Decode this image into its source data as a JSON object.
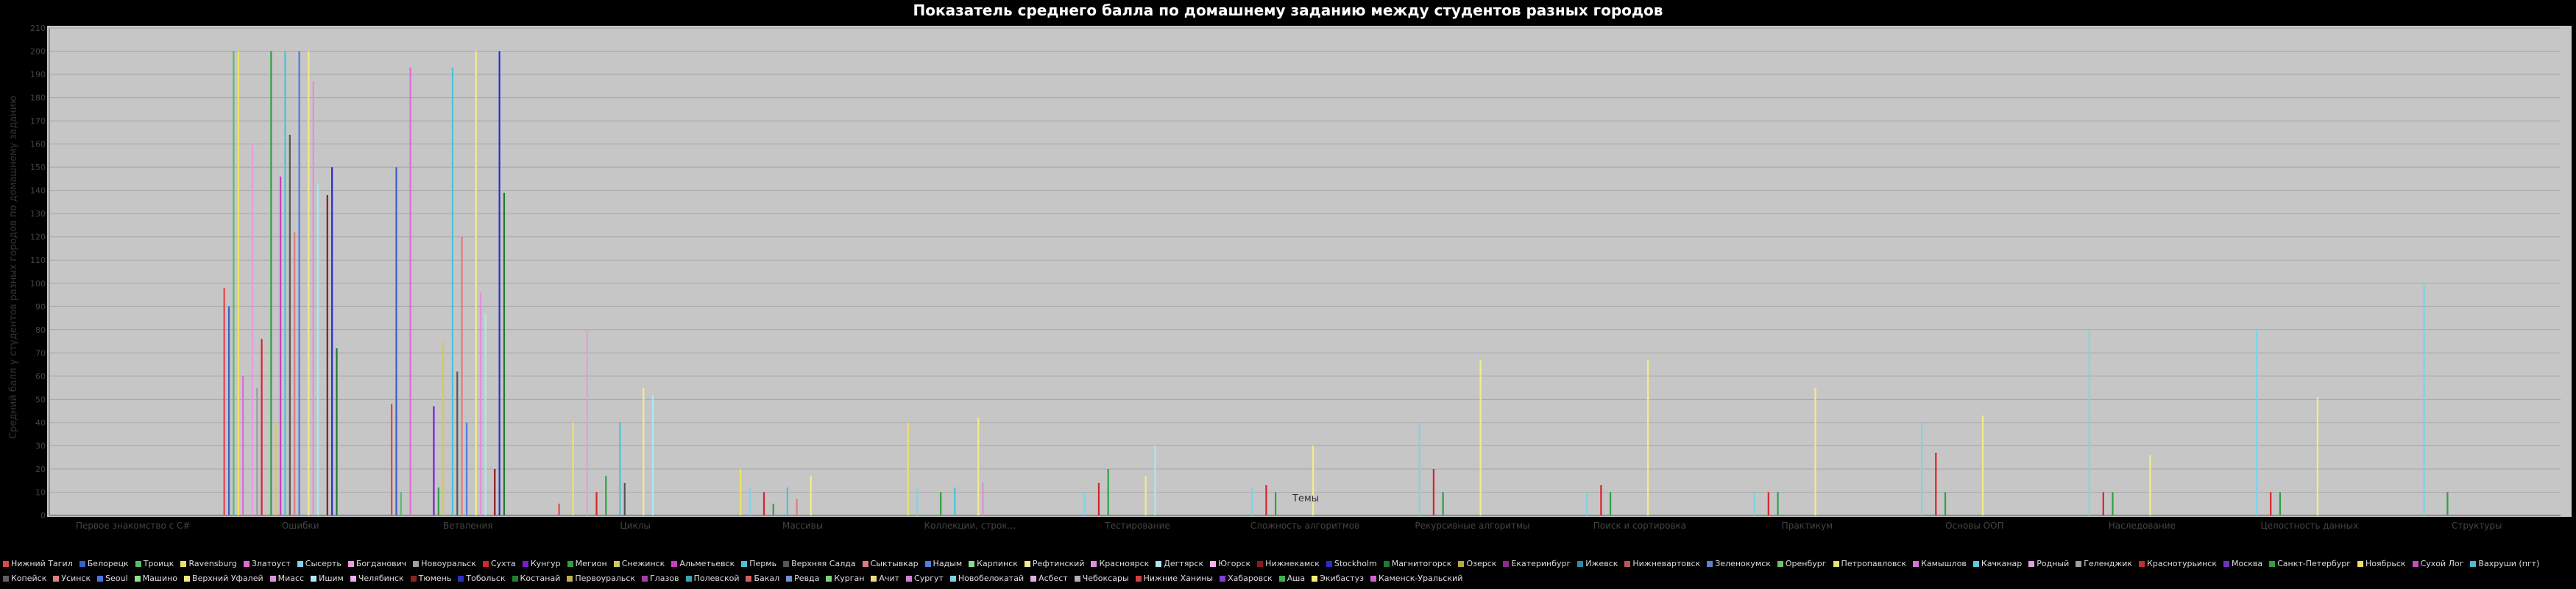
{
  "chart_data": {
    "type": "bar",
    "title": "Показатель среднего балла по домашнему заданию между студентов разных городов",
    "xlabel": "Темы",
    "ylabel": "Средний балл у студентов разных городов по домашнему заданию",
    "ylim": [
      0,
      210
    ],
    "yticks": [
      0,
      10,
      20,
      30,
      40,
      50,
      60,
      70,
      80,
      90,
      100,
      110,
      120,
      130,
      140,
      150,
      160,
      170,
      180,
      190,
      200,
      210
    ],
    "grid": true,
    "legend_position": "bottom",
    "categories": [
      "Первое знакомство с C#",
      "Ошибки",
      "Ветвления",
      "Циклы",
      "Массивы",
      "Коллекции, строк…",
      "Тестирование",
      "Сложность алгоритмов",
      "Рекурсивные алгоритмы",
      "Поиск и сортировка",
      "Практикум",
      "Основы ООП",
      "Наследование",
      "Целостность данных",
      "Структуры"
    ],
    "series": [
      {
        "name": "Нижний Тагил",
        "color": "#e0454a",
        "values": [
          0,
          98,
          48,
          5,
          0,
          0,
          0,
          0,
          0,
          0,
          0,
          0,
          0,
          0,
          0
        ]
      },
      {
        "name": "Белорецк",
        "color": "#3a5fcd",
        "values": [
          0,
          90,
          150,
          0,
          0,
          0,
          0,
          0,
          0,
          0,
          0,
          0,
          0,
          0,
          0
        ]
      },
      {
        "name": "Троицк",
        "color": "#4fc16a",
        "values": [
          0,
          200,
          10,
          0,
          0,
          0,
          0,
          0,
          0,
          0,
          0,
          0,
          0,
          0,
          0
        ]
      },
      {
        "name": "Ravensburg",
        "color": "#f0e35a",
        "values": [
          0,
          200,
          0,
          40,
          20,
          40,
          0,
          0,
          0,
          0,
          0,
          0,
          0,
          0,
          0
        ]
      },
      {
        "name": "Златоуст",
        "color": "#e069d6",
        "values": [
          0,
          60,
          193,
          0,
          0,
          0,
          0,
          0,
          0,
          0,
          0,
          0,
          0,
          0,
          0
        ]
      },
      {
        "name": "Сысерть",
        "color": "#7fd3e6",
        "values": [
          0,
          0,
          0,
          0,
          12,
          12,
          10,
          12,
          40,
          10,
          10,
          40,
          80,
          80,
          100
        ]
      },
      {
        "name": "Богданович",
        "color": "#e89ae0",
        "values": [
          0,
          160,
          0,
          80,
          0,
          0,
          0,
          0,
          0,
          0,
          0,
          0,
          0,
          0,
          0
        ]
      },
      {
        "name": "Новоуральск",
        "color": "#9aa0a6",
        "values": [
          0,
          55,
          0,
          0,
          0,
          0,
          0,
          0,
          0,
          0,
          0,
          0,
          0,
          0,
          0
        ]
      },
      {
        "name": "Сухта",
        "color": "#d6242b",
        "values": [
          0,
          76,
          0,
          10,
          10,
          0,
          14,
          13,
          20,
          13,
          10,
          27,
          10,
          10,
          0
        ]
      },
      {
        "name": "Кунгур",
        "color": "#7a1bd6",
        "values": [
          0,
          0,
          47,
          0,
          0,
          0,
          0,
          0,
          0,
          0,
          0,
          0,
          0,
          0,
          0
        ]
      },
      {
        "name": "Мегион",
        "color": "#2fa043",
        "values": [
          0,
          200,
          12,
          17,
          5,
          10,
          20,
          10,
          10,
          10,
          10,
          10,
          10,
          10,
          10
        ]
      },
      {
        "name": "Снежинск",
        "color": "#d4c95a",
        "values": [
          0,
          40,
          75,
          0,
          0,
          0,
          0,
          0,
          0,
          0,
          0,
          0,
          0,
          0,
          0
        ]
      },
      {
        "name": "Альметьевск",
        "color": "#c63fc0",
        "values": [
          0,
          146,
          0,
          0,
          0,
          0,
          0,
          0,
          0,
          0,
          0,
          0,
          0,
          0,
          0
        ]
      },
      {
        "name": "Пермь",
        "color": "#46c3d8",
        "values": [
          0,
          200,
          193,
          40,
          12,
          12,
          0,
          0,
          0,
          0,
          0,
          0,
          0,
          0,
          0
        ]
      },
      {
        "name": "Верхняя Салда",
        "color": "#555555",
        "values": [
          0,
          164,
          62,
          14,
          0,
          0,
          0,
          0,
          0,
          0,
          0,
          0,
          0,
          0,
          0
        ]
      },
      {
        "name": "Сыктывкар",
        "color": "#e07b7b",
        "values": [
          0,
          122,
          120,
          0,
          7,
          0,
          0,
          0,
          0,
          0,
          0,
          0,
          0,
          0,
          0
        ]
      },
      {
        "name": "Надым",
        "color": "#4d7de0",
        "values": [
          0,
          200,
          40,
          0,
          0,
          0,
          0,
          0,
          0,
          0,
          0,
          0,
          0,
          0,
          0
        ]
      },
      {
        "name": "Карпинск",
        "color": "#86e08a",
        "values": [
          0,
          0,
          0,
          0,
          0,
          0,
          0,
          0,
          0,
          0,
          0,
          0,
          0,
          0,
          0
        ]
      },
      {
        "name": "Рефтинский",
        "color": "#f3ec8a",
        "values": [
          0,
          200,
          200,
          55,
          17,
          42,
          17,
          30,
          67,
          67,
          55,
          43,
          26,
          51,
          0
        ]
      },
      {
        "name": "Красноярск",
        "color": "#e28ee0",
        "values": [
          0,
          187,
          96,
          0,
          0,
          14,
          0,
          0,
          0,
          0,
          0,
          0,
          0,
          0,
          0
        ]
      },
      {
        "name": "Дегтярск",
        "color": "#a9e8f2",
        "values": [
          0,
          143,
          87,
          52,
          0,
          0,
          30,
          0,
          0,
          0,
          0,
          0,
          0,
          0,
          0
        ]
      },
      {
        "name": "Югорск",
        "color": "#f2b4ee",
        "values": [
          0,
          0,
          0,
          0,
          0,
          0,
          0,
          0,
          0,
          0,
          0,
          0,
          0,
          0,
          0
        ]
      },
      {
        "name": "Нижнекамск",
        "color": "#8b1a1e",
        "values": [
          0,
          138,
          20,
          0,
          0,
          0,
          0,
          0,
          0,
          0,
          0,
          0,
          0,
          0,
          0
        ]
      },
      {
        "name": "Stockholm",
        "color": "#2b2bd0",
        "values": [
          0,
          150,
          200,
          0,
          0,
          0,
          0,
          0,
          0,
          0,
          0,
          0,
          0,
          0,
          0
        ]
      },
      {
        "name": "Магнитогорск",
        "color": "#1e7a30",
        "values": [
          0,
          72,
          139,
          0,
          0,
          0,
          0,
          0,
          0,
          0,
          0,
          0,
          0,
          0,
          0
        ]
      }
    ],
    "legend_entries": [
      "Нижний Тагил",
      "Белорецк",
      "Троицк",
      "Ravensburg",
      "Златоуст",
      "Сысерть",
      "Богданович",
      "Новоуральск",
      "Сухта",
      "Кунгур",
      "Мегион",
      "Снежинск",
      "Альметьевск",
      "Пермь",
      "Верхняя Салда",
      "Сыктывкар",
      "Надым",
      "Карпинск",
      "Рефтинский",
      "Красноярск",
      "Дегтярск",
      "Югорск",
      "Нижнекамск",
      "Stockholm",
      "Магнитогорск",
      "Озерск",
      "Екатеринбург",
      "Ижевск",
      "Нижневартовск",
      "Зеленокумск",
      "Оренбург",
      "Петропавловск",
      "Камышлов",
      "Качканар",
      "Родный",
      "Геленджик",
      "Краснотурьинск",
      "Москва",
      "Санкт-Петербург",
      "Ноябрьск",
      "Сухой Лог",
      "Вахруши (пгт)",
      "Копейск",
      "Усинск",
      "Seoul",
      "Машино",
      "Верхний Уфалей",
      "Миасс",
      "Ишим",
      "Челябинск",
      "Тюмень",
      "Тобольск",
      "Костанай",
      "Первоуральск",
      "Глазов",
      "Полевской",
      "Бакал",
      "Ревда",
      "Курган",
      "Ачит",
      "Сургут",
      "Новобелокатай",
      "Асбест",
      "Чебоксары",
      "Нижние Ханины",
      "Хабаровск",
      "Аша",
      "Экибастуз",
      "Каменск-Уральский"
    ],
    "legend_colors": [
      "#e0454a",
      "#3a5fcd",
      "#4fc16a",
      "#f0e35a",
      "#e069d6",
      "#7fd3e6",
      "#e89ae0",
      "#9aa0a6",
      "#d6242b",
      "#7a1bd6",
      "#2fa043",
      "#d4c95a",
      "#c63fc0",
      "#46c3d8",
      "#555555",
      "#e07b7b",
      "#4d7de0",
      "#86e08a",
      "#f3ec8a",
      "#e28ee0",
      "#a9e8f2",
      "#f2b4ee",
      "#8b1a1e",
      "#2b2bd0",
      "#1e7a30",
      "#b8a840",
      "#8f2a8a",
      "#2a8fa0",
      "#c05555",
      "#6080d0",
      "#70c070",
      "#e8e070",
      "#e070d0",
      "#60c8e0",
      "#e0a0e0",
      "#a0a0a0",
      "#c03030",
      "#7030c0",
      "#30a040",
      "#f0e060",
      "#c050c0",
      "#50b8d0",
      "#606060",
      "#e08080",
      "#5070e0",
      "#90e090",
      "#f0e880",
      "#e090e0",
      "#b0e8f0",
      "#f0b0f0",
      "#902020",
      "#3030c0",
      "#208030",
      "#c0b050",
      "#a040a0",
      "#40a0b0",
      "#d06060",
      "#7090d0",
      "#80d080",
      "#e8e080",
      "#d080d0",
      "#80d0e0",
      "#e0b0e0",
      "#b0b0b0",
      "#d04040",
      "#8040d0",
      "#40b050",
      "#f0f070",
      "#d060d0"
    ]
  }
}
